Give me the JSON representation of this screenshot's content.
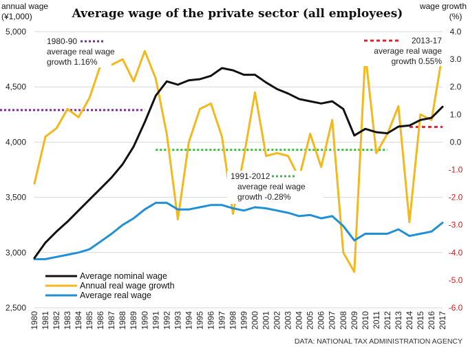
{
  "chart_data": {
    "type": "line",
    "title": "Average wage of the private sector (all employees)",
    "ylabel_left": "annual wage",
    "ylabel_left_unit": "(¥1,000)",
    "ylabel_right": "wage growth",
    "ylabel_right_unit": "(%)",
    "source": "DATA: NATIONAL TAX ADMINISTRATION AGENCY",
    "ylim_left": [
      2500,
      5000
    ],
    "ylim_right": [
      -6.0,
      4.0
    ],
    "yticks_left": [
      "5,000",
      "4,500",
      "4,000",
      "3,500",
      "3,000",
      "2,500"
    ],
    "yticks_right": [
      "4.0",
      "3.0",
      "2.0",
      "1.0",
      "0.0",
      "-1.0",
      "-2.0",
      "-3.0",
      "-4.0",
      "-5.0",
      "-6.0"
    ],
    "categories": [
      "1980",
      "1981",
      "1982",
      "1983",
      "1984",
      "1985",
      "1986",
      "1987",
      "1988",
      "1989",
      "1990",
      "1991",
      "1992",
      "1993",
      "1994",
      "1995",
      "1996",
      "1997",
      "1998",
      "1999",
      "2000",
      "2001",
      "2002",
      "2003",
      "2004",
      "2005",
      "2006",
      "2007",
      "2008",
      "2009",
      "2010",
      "2011",
      "2012",
      "2013",
      "2014",
      "2015",
      "2016",
      "2017"
    ],
    "series": [
      {
        "name": "Average nominal wage",
        "axis": "left",
        "color": "#111111",
        "values": [
          2950,
          3090,
          3190,
          3280,
          3380,
          3480,
          3580,
          3680,
          3800,
          3960,
          4180,
          4420,
          4550,
          4520,
          4560,
          4570,
          4600,
          4670,
          4650,
          4610,
          4610,
          4540,
          4480,
          4440,
          4390,
          4370,
          4350,
          4370,
          4300,
          4060,
          4120,
          4090,
          4080,
          4140,
          4150,
          4200,
          4220,
          4320
        ]
      },
      {
        "name": "Annual real wage growth",
        "axis": "right",
        "color": "#f2b81c",
        "values": [
          -1.5,
          0.2,
          0.5,
          1.2,
          0.9,
          1.6,
          2.8,
          2.8,
          3.0,
          2.2,
          3.3,
          2.3,
          0.3,
          -2.8,
          0.0,
          1.2,
          1.4,
          0.2,
          -2.6,
          -0.5,
          1.8,
          -0.5,
          -0.4,
          -0.5,
          -1.3,
          0.3,
          -0.9,
          0.8,
          -4.0,
          -4.7,
          3.2,
          -0.4,
          0.3,
          1.3,
          -2.9,
          1.0,
          0.8,
          3.2
        ]
      },
      {
        "name": "Average real wage",
        "axis": "left",
        "color": "#1f8fd6",
        "values": [
          2940,
          2940,
          2960,
          2980,
          3000,
          3030,
          3100,
          3170,
          3250,
          3310,
          3390,
          3450,
          3450,
          3390,
          3390,
          3410,
          3430,
          3430,
          3400,
          3380,
          3410,
          3400,
          3380,
          3360,
          3330,
          3340,
          3310,
          3330,
          3240,
          3110,
          3170,
          3170,
          3170,
          3210,
          3150,
          3170,
          3190,
          3270
        ]
      }
    ],
    "reference_lines": [
      {
        "label_period": "1980-90",
        "label_desc": "average real wage",
        "label_value": "growth 1.16%",
        "value": 1.16,
        "from": "1980",
        "to": "1990",
        "color": "#7a2a9c"
      },
      {
        "label_period": "1991-2012",
        "label_desc": "average real wage",
        "label_value": "growth -0.28%",
        "value": -0.28,
        "from": "1991",
        "to": "2012",
        "color": "#3cb83c"
      },
      {
        "label_period": "2013-17",
        "label_desc": "average real wage",
        "label_value": "growth 0.55%",
        "value": 0.55,
        "from": "2014",
        "to": "2017",
        "color": "#e0202a"
      }
    ],
    "legend": [
      "Average nominal wage",
      "Annual real wage growth",
      "Average real wage"
    ]
  }
}
